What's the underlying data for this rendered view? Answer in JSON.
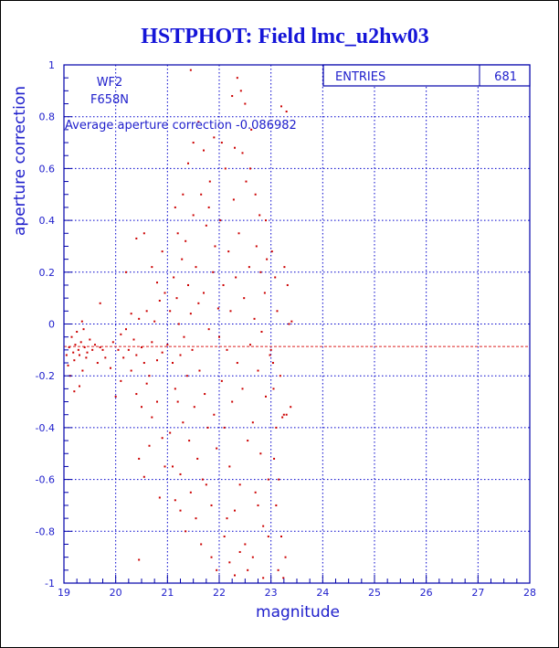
{
  "page_title": "HSTPHOT: Field lmc_u2hw03",
  "stats_box": {
    "label": "ENTRIES",
    "value": "681"
  },
  "annotations": {
    "camera": "WF2",
    "filter": "F658N",
    "average": "Average aperture correction -0.086982"
  },
  "colors": {
    "frame": "#0000aa",
    "grid": "#0000cc",
    "points": "#cc0000",
    "title": "#1515d8",
    "text": "#2020cc",
    "reference_line": "#dd2222"
  },
  "chart_data": {
    "type": "scatter",
    "title": "HSTPHOT: Field lmc_u2hw03",
    "xlabel": "magnitude",
    "ylabel": "aperture correction",
    "xlim": [
      19,
      28
    ],
    "ylim": [
      -1,
      1
    ],
    "xticks": [
      "19",
      "20",
      "21",
      "22",
      "23",
      "24",
      "25",
      "26",
      "27",
      "28"
    ],
    "yticks": [
      "-1",
      "-0.8",
      "-0.6",
      "-0.4",
      "-0.2",
      "0",
      "0.2",
      "0.4",
      "0.6",
      "0.8",
      "1"
    ],
    "grid": true,
    "entries": 681,
    "average_line": -0.086982,
    "series": [
      {
        "points": [
          [
            19.05,
            -0.12
          ],
          [
            19.08,
            -0.16
          ],
          [
            19.1,
            -0.09
          ],
          [
            19.12,
            -0.2
          ],
          [
            19.15,
            -0.05
          ],
          [
            19.18,
            -0.11
          ],
          [
            19.2,
            -0.14
          ],
          [
            19.22,
            -0.08
          ],
          [
            19.25,
            -0.03
          ],
          [
            19.28,
            -0.1
          ],
          [
            19.3,
            -0.12
          ],
          [
            19.33,
            -0.07
          ],
          [
            19.36,
            -0.18
          ],
          [
            19.38,
            -0.02
          ],
          [
            19.4,
            -0.09
          ],
          [
            19.43,
            -0.13
          ],
          [
            19.45,
            -0.11
          ],
          [
            19.5,
            -0.06
          ],
          [
            19.55,
            -0.1
          ],
          [
            19.6,
            -0.08
          ],
          [
            19.65,
            -0.15
          ],
          [
            19.7,
            -0.09
          ],
          [
            19.75,
            -0.1
          ],
          [
            19.8,
            -0.13
          ],
          [
            19.3,
            -0.24
          ],
          [
            19.2,
            -0.26
          ],
          [
            19.35,
            0.01
          ],
          [
            19.7,
            0.08
          ],
          [
            19.9,
            -0.17
          ],
          [
            19.95,
            -0.07
          ],
          [
            20.05,
            -0.1
          ],
          [
            20.1,
            -0.04
          ],
          [
            20.15,
            -0.13
          ],
          [
            20.2,
            -0.02
          ],
          [
            20.25,
            -0.1
          ],
          [
            20.3,
            0.04
          ],
          [
            20.35,
            -0.06
          ],
          [
            20.4,
            -0.12
          ],
          [
            20.45,
            0.02
          ],
          [
            20.5,
            -0.09
          ],
          [
            20.55,
            -0.15
          ],
          [
            20.6,
            0.05
          ],
          [
            20.65,
            -0.2
          ],
          [
            20.7,
            -0.07
          ],
          [
            20.75,
            0.01
          ],
          [
            20.8,
            -0.14
          ],
          [
            20.85,
            0.09
          ],
          [
            20.9,
            -0.11
          ],
          [
            20.95,
            0.12
          ],
          [
            20.3,
            -0.18
          ],
          [
            20.4,
            -0.27
          ],
          [
            20.5,
            -0.32
          ],
          [
            20.6,
            -0.23
          ],
          [
            20.7,
            -0.36
          ],
          [
            20.8,
            -0.3
          ],
          [
            20.9,
            -0.44
          ],
          [
            20.45,
            -0.52
          ],
          [
            20.55,
            -0.59
          ],
          [
            20.65,
            -0.47
          ],
          [
            20.85,
            -0.67
          ],
          [
            20.95,
            -0.55
          ],
          [
            20.2,
            0.2
          ],
          [
            20.4,
            0.33
          ],
          [
            20.55,
            0.35
          ],
          [
            20.7,
            0.22
          ],
          [
            20.8,
            0.16
          ],
          [
            20.9,
            0.28
          ],
          [
            20.45,
            -0.91
          ],
          [
            20.0,
            -0.28
          ],
          [
            20.1,
            -0.22
          ],
          [
            21.0,
            -0.08
          ],
          [
            21.05,
            0.05
          ],
          [
            21.1,
            -0.15
          ],
          [
            21.12,
            0.18
          ],
          [
            21.15,
            -0.25
          ],
          [
            21.18,
            0.1
          ],
          [
            21.2,
            -0.3
          ],
          [
            21.22,
            0.0
          ],
          [
            21.25,
            -0.12
          ],
          [
            21.28,
            0.25
          ],
          [
            21.3,
            -0.38
          ],
          [
            21.32,
            -0.05
          ],
          [
            21.35,
            0.32
          ],
          [
            21.38,
            -0.2
          ],
          [
            21.4,
            0.15
          ],
          [
            21.42,
            -0.45
          ],
          [
            21.45,
            0.04
          ],
          [
            21.48,
            -0.1
          ],
          [
            21.5,
            0.42
          ],
          [
            21.52,
            -0.32
          ],
          [
            21.55,
            0.22
          ],
          [
            21.58,
            -0.52
          ],
          [
            21.6,
            0.08
          ],
          [
            21.62,
            -0.18
          ],
          [
            21.65,
            0.5
          ],
          [
            21.68,
            -0.6
          ],
          [
            21.7,
            0.12
          ],
          [
            21.72,
            -0.27
          ],
          [
            21.75,
            0.38
          ],
          [
            21.78,
            -0.4
          ],
          [
            21.8,
            -0.02
          ],
          [
            21.82,
            0.55
          ],
          [
            21.85,
            -0.7
          ],
          [
            21.88,
            0.2
          ],
          [
            21.9,
            -0.35
          ],
          [
            21.92,
            0.3
          ],
          [
            21.95,
            -0.48
          ],
          [
            21.98,
            0.06
          ],
          [
            21.1,
            -0.55
          ],
          [
            21.15,
            -0.68
          ],
          [
            21.25,
            -0.72
          ],
          [
            21.35,
            -0.8
          ],
          [
            21.45,
            -0.65
          ],
          [
            21.55,
            -0.75
          ],
          [
            21.65,
            -0.85
          ],
          [
            21.75,
            -0.62
          ],
          [
            21.85,
            -0.9
          ],
          [
            21.95,
            -0.95
          ],
          [
            21.2,
            0.35
          ],
          [
            21.3,
            0.5
          ],
          [
            21.4,
            0.62
          ],
          [
            21.5,
            0.7
          ],
          [
            21.6,
            0.78
          ],
          [
            21.45,
            0.98
          ],
          [
            21.7,
            0.67
          ],
          [
            21.8,
            0.45
          ],
          [
            21.9,
            0.72
          ],
          [
            21.05,
            -0.42
          ],
          [
            21.15,
            0.45
          ],
          [
            21.25,
            -0.58
          ],
          [
            22.0,
            -0.05
          ],
          [
            22.02,
            0.4
          ],
          [
            22.05,
            -0.22
          ],
          [
            22.08,
            0.15
          ],
          [
            22.1,
            -0.4
          ],
          [
            22.12,
            0.6
          ],
          [
            22.15,
            -0.1
          ],
          [
            22.18,
            0.28
          ],
          [
            22.2,
            -0.55
          ],
          [
            22.22,
            0.05
          ],
          [
            22.25,
            -0.3
          ],
          [
            22.28,
            0.48
          ],
          [
            22.3,
            -0.72
          ],
          [
            22.32,
            0.18
          ],
          [
            22.35,
            -0.15
          ],
          [
            22.38,
            0.35
          ],
          [
            22.4,
            -0.62
          ],
          [
            22.42,
            0.9
          ],
          [
            22.45,
            -0.25
          ],
          [
            22.48,
            0.1
          ],
          [
            22.5,
            -0.85
          ],
          [
            22.52,
            0.55
          ],
          [
            22.55,
            -0.45
          ],
          [
            22.58,
            0.22
          ],
          [
            22.6,
            -0.08
          ],
          [
            22.62,
            0.75
          ],
          [
            22.65,
            -0.38
          ],
          [
            22.68,
            0.02
          ],
          [
            22.7,
            -0.65
          ],
          [
            22.72,
            0.3
          ],
          [
            22.75,
            -0.18
          ],
          [
            22.78,
            0.42
          ],
          [
            22.8,
            -0.5
          ],
          [
            22.82,
            -0.03
          ],
          [
            22.85,
            -0.78
          ],
          [
            22.88,
            0.12
          ],
          [
            22.9,
            -0.28
          ],
          [
            22.92,
            0.25
          ],
          [
            22.95,
            -0.6
          ],
          [
            22.98,
            -0.12
          ],
          [
            22.1,
            -0.82
          ],
          [
            22.2,
            -0.92
          ],
          [
            22.3,
            -0.97
          ],
          [
            22.4,
            -0.88
          ],
          [
            22.25,
            0.88
          ],
          [
            22.35,
            0.95
          ],
          [
            22.5,
            0.85
          ],
          [
            22.45,
            0.66
          ],
          [
            22.6,
            0.6
          ],
          [
            22.15,
            -0.75
          ],
          [
            22.05,
            0.7
          ],
          [
            22.55,
            -0.95
          ],
          [
            22.65,
            -0.9
          ],
          [
            22.75,
            -0.7
          ],
          [
            22.85,
            -0.98
          ],
          [
            22.95,
            -0.82
          ],
          [
            22.7,
            0.5
          ],
          [
            22.8,
            0.2
          ],
          [
            22.9,
            0.4
          ],
          [
            22.3,
            0.68
          ],
          [
            23.0,
            -0.1
          ],
          [
            23.05,
            -0.25
          ],
          [
            23.08,
            0.18
          ],
          [
            23.1,
            -0.4
          ],
          [
            23.12,
            0.05
          ],
          [
            23.15,
            -0.6
          ],
          [
            23.18,
            -0.2
          ],
          [
            23.2,
            -0.82
          ],
          [
            23.22,
            -0.36
          ],
          [
            23.25,
            -0.35
          ],
          [
            23.28,
            -0.9
          ],
          [
            23.3,
            -0.35
          ],
          [
            23.32,
            0.15
          ],
          [
            23.35,
            0.0
          ],
          [
            23.38,
            -0.32
          ],
          [
            23.02,
            0.28
          ],
          [
            23.06,
            -0.52
          ],
          [
            23.14,
            -0.95
          ],
          [
            23.24,
            -0.98
          ],
          [
            23.3,
            0.82
          ],
          [
            23.2,
            0.84
          ],
          [
            23.1,
            -0.7
          ],
          [
            23.4,
            0.01
          ],
          [
            23.26,
            0.22
          ],
          [
            23.04,
            -0.15
          ]
        ]
      }
    ]
  }
}
